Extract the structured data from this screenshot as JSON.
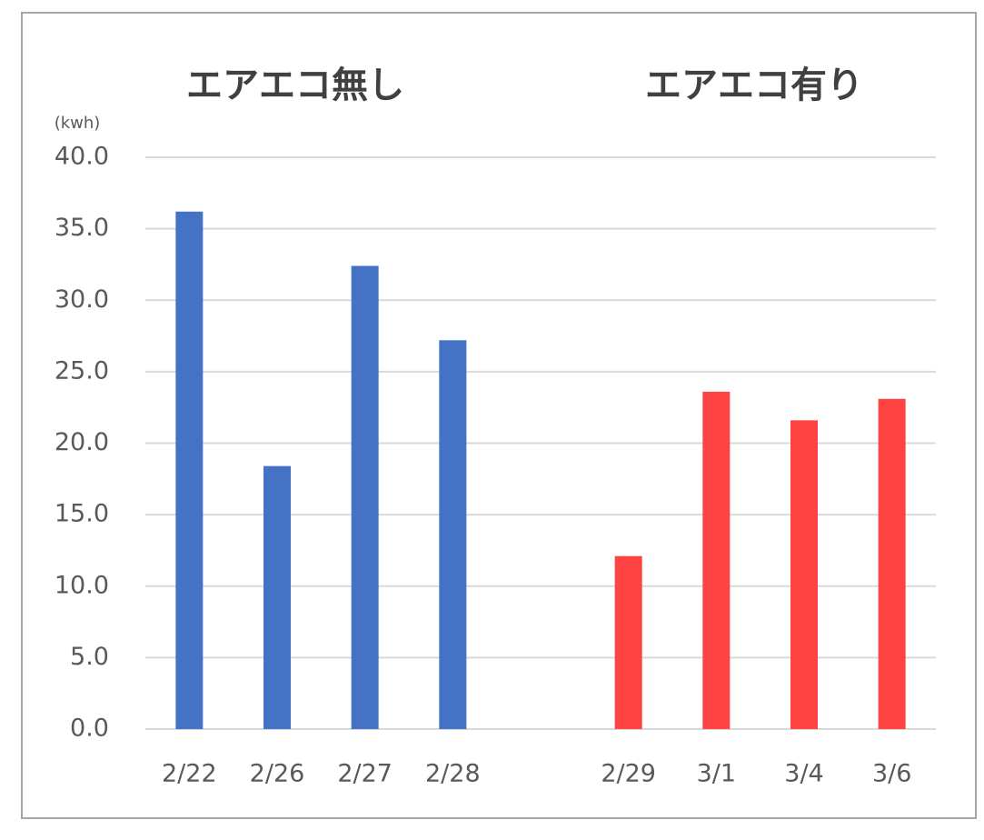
{
  "chart_data": {
    "type": "bar",
    "unit_label": "(kwh)",
    "categories": [
      "2/22",
      "2/26",
      "2/27",
      "2/28",
      null,
      "2/29",
      "3/1",
      "3/4",
      "3/6"
    ],
    "series": [
      {
        "name": "エアエコ無し",
        "color": "#4472c4",
        "values": [
          36.2,
          18.4,
          32.4,
          27.2,
          null,
          null,
          null,
          null,
          null
        ]
      },
      {
        "name": "エアエコ有り",
        "color": "#ff4343",
        "values": [
          null,
          null,
          null,
          null,
          null,
          12.1,
          23.6,
          21.6,
          23.1
        ]
      }
    ],
    "ylim": [
      0,
      40
    ],
    "yticks": [
      {
        "value": 0,
        "label": "0.0"
      },
      {
        "value": 5,
        "label": "5.0"
      },
      {
        "value": 10,
        "label": "10.0"
      },
      {
        "value": 15,
        "label": "15.0"
      },
      {
        "value": 20,
        "label": "20.0"
      },
      {
        "value": 25,
        "label": "25.0"
      },
      {
        "value": 30,
        "label": "30.0"
      },
      {
        "value": 35,
        "label": "35.0"
      },
      {
        "value": 40,
        "label": "40.0"
      }
    ],
    "grid": true
  }
}
